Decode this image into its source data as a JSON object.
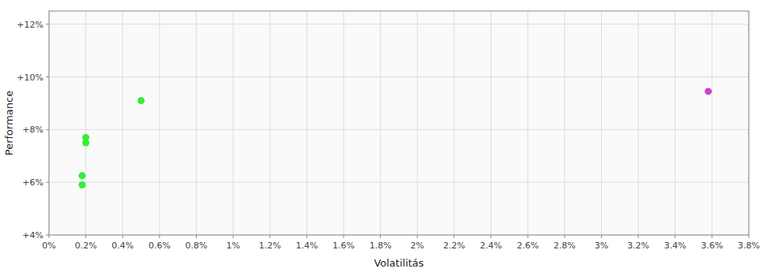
{
  "chart_data": {
    "type": "scatter",
    "xlabel": "Volatilitás",
    "ylabel": "Performance",
    "xlim": [
      0.0,
      0.038
    ],
    "ylim": [
      0.04,
      0.125
    ],
    "xticks": [
      {
        "value": 0.0,
        "label": "0%"
      },
      {
        "value": 0.002,
        "label": "0.2%"
      },
      {
        "value": 0.004,
        "label": "0.4%"
      },
      {
        "value": 0.006,
        "label": "0.6%"
      },
      {
        "value": 0.008,
        "label": "0.8%"
      },
      {
        "value": 0.01,
        "label": "1%"
      },
      {
        "value": 0.012,
        "label": "1.2%"
      },
      {
        "value": 0.014,
        "label": "1.4%"
      },
      {
        "value": 0.016,
        "label": "1.6%"
      },
      {
        "value": 0.018,
        "label": "1.8%"
      },
      {
        "value": 0.02,
        "label": "2%"
      },
      {
        "value": 0.022,
        "label": "2.2%"
      },
      {
        "value": 0.024,
        "label": "2.4%"
      },
      {
        "value": 0.026,
        "label": "2.6%"
      },
      {
        "value": 0.028,
        "label": "2.8%"
      },
      {
        "value": 0.03,
        "label": "3%"
      },
      {
        "value": 0.032,
        "label": "3.2%"
      },
      {
        "value": 0.034,
        "label": "3.4%"
      },
      {
        "value": 0.036,
        "label": "3.6%"
      },
      {
        "value": 0.038,
        "label": "3.8%"
      }
    ],
    "yticks": [
      {
        "value": 0.04,
        "label": "+4%"
      },
      {
        "value": 0.06,
        "label": "+6%"
      },
      {
        "value": 0.08,
        "label": "+8%"
      },
      {
        "value": 0.1,
        "label": "+10%"
      },
      {
        "value": 0.12,
        "label": "+12%"
      }
    ],
    "grid": true,
    "marker": "circle",
    "series": [
      {
        "color": "#33ee33",
        "x": [
          0.0018,
          0.0018,
          0.002,
          0.002,
          0.005
        ],
        "values": [
          0.0625,
          0.059,
          0.077,
          0.075,
          0.091
        ]
      },
      {
        "color": "#cc44cc",
        "x": [
          0.0358
        ],
        "values": [
          0.0945
        ]
      }
    ]
  }
}
